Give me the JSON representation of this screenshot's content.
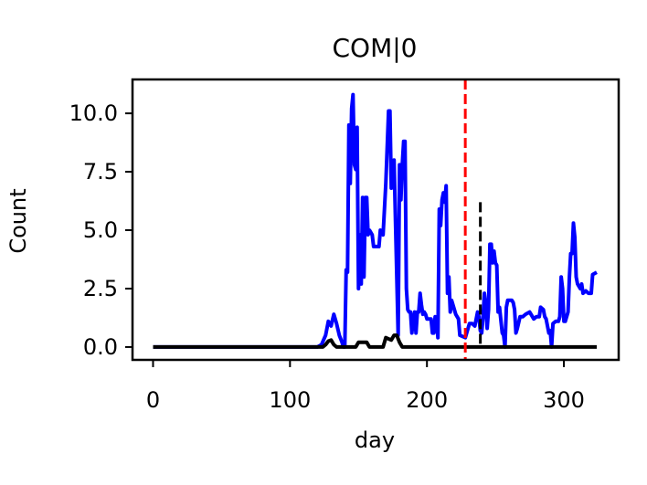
{
  "chart_data": {
    "type": "line",
    "title": "COM|0",
    "xlabel": "day",
    "ylabel": "Count",
    "xlim": [
      -15,
      340
    ],
    "ylim": [
      -0.55,
      11.45
    ],
    "xticks": [
      0,
      100,
      200,
      300
    ],
    "xtick_labels": [
      "0",
      "100",
      "200",
      "300"
    ],
    "yticks": [
      0.0,
      2.5,
      5.0,
      7.5,
      10.0
    ],
    "ytick_labels": [
      "0.0",
      "2.5",
      "5.0",
      "7.5",
      "10.0"
    ],
    "grid": false,
    "legend": "none",
    "series": [
      {
        "color": "#0000ff",
        "style": "solid",
        "points": [
          [
            0,
            0
          ],
          [
            120,
            0
          ],
          [
            123,
            0.1
          ],
          [
            126,
            0.5
          ],
          [
            128,
            1.1
          ],
          [
            130,
            0.9
          ],
          [
            132,
            1.4
          ],
          [
            134,
            1.0
          ],
          [
            136,
            0.5
          ],
          [
            138,
            0.2
          ],
          [
            139,
            0
          ],
          [
            140,
            0
          ],
          [
            141,
            3.3
          ],
          [
            142,
            3.2
          ],
          [
            143,
            9.5
          ],
          [
            144,
            7.0
          ],
          [
            145,
            10.2
          ],
          [
            146,
            10.8
          ],
          [
            147,
            7.8
          ],
          [
            148,
            7.6
          ],
          [
            149,
            9.4
          ],
          [
            150,
            2.5
          ],
          [
            151,
            4.8
          ],
          [
            152,
            2.7
          ],
          [
            153,
            6.4
          ],
          [
            154,
            3.0
          ],
          [
            155,
            6.4
          ],
          [
            156,
            6.4
          ],
          [
            157,
            4.8
          ],
          [
            158,
            5.0
          ],
          [
            160,
            4.8
          ],
          [
            161,
            4.3
          ],
          [
            165,
            4.3
          ],
          [
            166,
            5.0
          ],
          [
            168,
            4.8
          ],
          [
            170,
            7.0
          ],
          [
            172,
            10.1
          ],
          [
            173,
            10.1
          ],
          [
            174,
            6.8
          ],
          [
            175,
            7.2
          ],
          [
            176,
            8.0
          ],
          [
            178,
            3.0
          ],
          [
            179,
            0.5
          ],
          [
            180,
            7.8
          ],
          [
            181,
            6.3
          ],
          [
            182,
            7.8
          ],
          [
            183,
            8.8
          ],
          [
            184,
            8.8
          ],
          [
            185,
            2.5
          ],
          [
            186,
            1.6
          ],
          [
            187,
            1.5
          ],
          [
            188,
            1.5
          ],
          [
            189,
            0.6
          ],
          [
            190,
            1.2
          ],
          [
            191,
            1.5
          ],
          [
            192,
            0.6
          ],
          [
            193,
            1.5
          ],
          [
            194,
            1.5
          ],
          [
            195,
            2.3
          ],
          [
            196,
            1.8
          ],
          [
            197,
            1.4
          ],
          [
            198,
            1.5
          ],
          [
            199,
            1.4
          ],
          [
            200,
            1.2
          ],
          [
            201,
            1.2
          ],
          [
            203,
            1.2
          ],
          [
            204,
            0.6
          ],
          [
            205,
            0.6
          ],
          [
            206,
            1.3
          ],
          [
            207,
            1.2
          ],
          [
            208,
            0.4
          ],
          [
            209,
            5.9
          ],
          [
            210,
            5.2
          ],
          [
            211,
            6.3
          ],
          [
            212,
            6.6
          ],
          [
            213,
            6.2
          ],
          [
            214,
            6.9
          ],
          [
            215,
            2.3
          ],
          [
            216,
            3.0
          ],
          [
            217,
            1.5
          ],
          [
            218,
            2.0
          ],
          [
            220,
            1.6
          ],
          [
            221,
            1.4
          ],
          [
            223,
            1.2
          ],
          [
            224,
            0.5
          ],
          [
            228,
            0.4
          ],
          [
            231,
            1.0
          ],
          [
            233,
            1.0
          ],
          [
            235,
            0.9
          ],
          [
            237,
            1.5
          ],
          [
            238,
            1.3
          ],
          [
            239,
            0.7
          ],
          [
            240,
            0.6
          ],
          [
            241,
            1.3
          ],
          [
            242,
            2.3
          ],
          [
            243,
            1.8
          ],
          [
            244,
            0.8
          ],
          [
            245,
            1.6
          ],
          [
            246,
            4.4
          ],
          [
            247,
            4.4
          ],
          [
            248,
            3.6
          ],
          [
            249,
            4.1
          ],
          [
            250,
            3.6
          ],
          [
            251,
            3.5
          ],
          [
            252,
            1.5
          ],
          [
            253,
            1.7
          ],
          [
            255,
            0.6
          ],
          [
            256,
            0.5
          ],
          [
            257,
            0
          ],
          [
            258,
            1.7
          ],
          [
            259,
            2.0
          ],
          [
            262,
            2.0
          ],
          [
            263,
            1.9
          ],
          [
            264,
            1.6
          ],
          [
            265,
            0.6
          ],
          [
            266,
            0.8
          ],
          [
            268,
            1.3
          ],
          [
            270,
            1.3
          ],
          [
            272,
            1.4
          ],
          [
            275,
            1.5
          ],
          [
            277,
            1.3
          ],
          [
            278,
            1.2
          ],
          [
            280,
            1.3
          ],
          [
            282,
            1.3
          ],
          [
            283,
            1.7
          ],
          [
            285,
            1.6
          ],
          [
            286,
            1.3
          ],
          [
            287,
            1.2
          ],
          [
            289,
            0.6
          ],
          [
            290,
            0.7
          ],
          [
            291,
            0
          ],
          [
            292,
            1.0
          ],
          [
            294,
            1.1
          ],
          [
            296,
            1.1
          ],
          [
            297,
            1.3
          ],
          [
            298,
            3.0
          ],
          [
            299,
            2.5
          ],
          [
            300,
            1.1
          ],
          [
            301,
            1.1
          ],
          [
            302,
            1.3
          ],
          [
            303,
            1.5
          ],
          [
            304,
            3.0
          ],
          [
            305,
            4.0
          ],
          [
            306,
            4.0
          ],
          [
            307,
            5.3
          ],
          [
            308,
            4.7
          ],
          [
            309,
            3.0
          ],
          [
            310,
            2.7
          ],
          [
            312,
            2.5
          ],
          [
            313,
            2.7
          ],
          [
            314,
            2.3
          ],
          [
            316,
            2.4
          ],
          [
            318,
            2.3
          ],
          [
            320,
            2.3
          ],
          [
            321,
            3.1
          ],
          [
            324,
            3.2
          ]
        ]
      },
      {
        "color": "#000000",
        "style": "solid",
        "points": [
          [
            0,
            0
          ],
          [
            124,
            0
          ],
          [
            126,
            0.1
          ],
          [
            128,
            0.25
          ],
          [
            130,
            0.3
          ],
          [
            132,
            0.1
          ],
          [
            134,
            0
          ],
          [
            148,
            0
          ],
          [
            150,
            0.2
          ],
          [
            156,
            0.2
          ],
          [
            158,
            0
          ],
          [
            168,
            0
          ],
          [
            170,
            0.4
          ],
          [
            174,
            0.3
          ],
          [
            176,
            0.5
          ],
          [
            178,
            0.5
          ],
          [
            180,
            0.2
          ],
          [
            182,
            0
          ],
          [
            324,
            0
          ]
        ]
      }
    ],
    "vlines": [
      {
        "x": 228,
        "color": "#ff0000",
        "style": "dashed",
        "ymin": -0.55,
        "ymax": 11.45
      },
      {
        "x": 239,
        "color": "#000000",
        "style": "dashed",
        "ymin": 0,
        "ymax": 6.2
      }
    ]
  }
}
